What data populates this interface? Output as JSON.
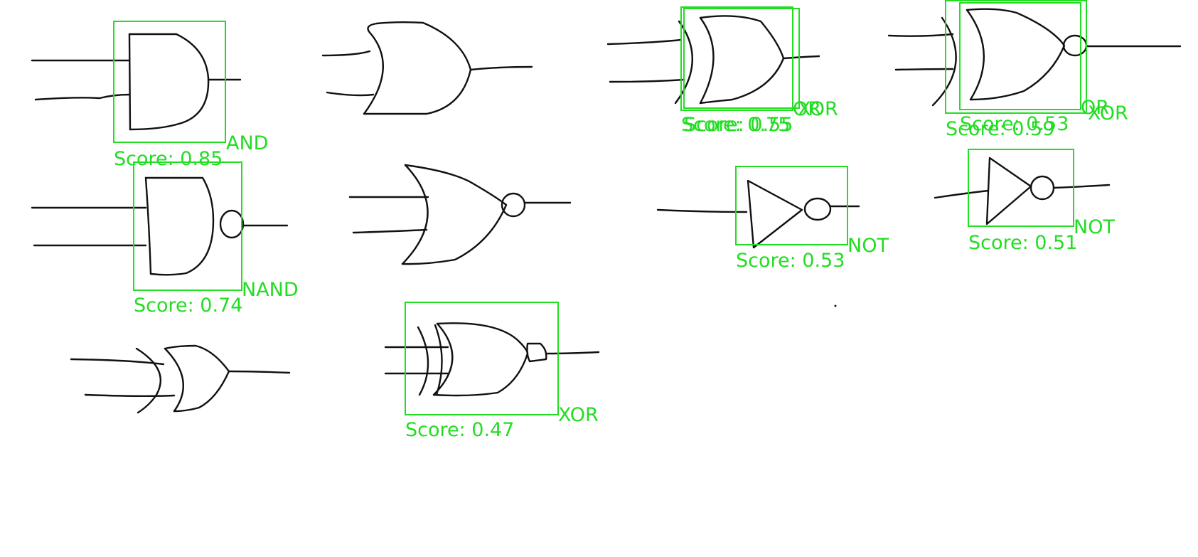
{
  "detection_color": "#22dd22",
  "sketch_color": "#111111",
  "gates": [
    {
      "id": "and-1",
      "shape": "and-gate"
    },
    {
      "id": "or-1",
      "shape": "or-gate"
    },
    {
      "id": "xor-1",
      "shape": "xor-gate"
    },
    {
      "id": "xnor-1",
      "shape": "xnor-gate"
    },
    {
      "id": "nand-1",
      "shape": "nand-gate"
    },
    {
      "id": "nor-1",
      "shape": "nor-gate"
    },
    {
      "id": "not-1",
      "shape": "not-gate"
    },
    {
      "id": "not-2",
      "shape": "not-gate"
    },
    {
      "id": "xor-2",
      "shape": "xor-gate"
    },
    {
      "id": "xnor-2",
      "shape": "xnor-gate"
    }
  ],
  "detections": [
    {
      "label": "AND",
      "score": "Score: 0.85"
    },
    {
      "label": "OR",
      "score": "Score: 0.75"
    },
    {
      "label": "XOR",
      "score": "Score: 0.55"
    },
    {
      "label": "OR",
      "score": "Score: 0.53"
    },
    {
      "label": "XOR",
      "score": "Score: 0.59"
    },
    {
      "label": "NAND",
      "score": "Score: 0.74"
    },
    {
      "label": "NOT",
      "score": "Score: 0.53"
    },
    {
      "label": "NOT",
      "score": "Score: 0.51"
    },
    {
      "label": "XOR",
      "score": "Score: 0.47"
    }
  ]
}
